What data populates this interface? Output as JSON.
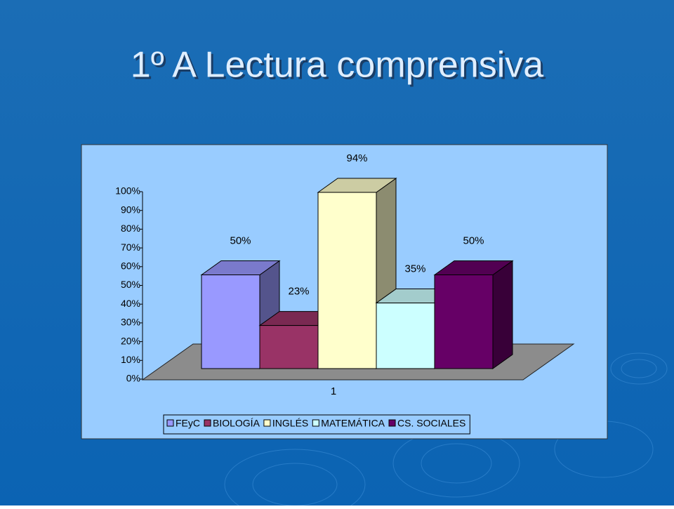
{
  "chart_data": {
    "type": "bar3d",
    "title": "1º A Lectura comprensiva",
    "categories": [
      "1"
    ],
    "series": [
      {
        "name": "FEyC",
        "color": "#9999ff",
        "values": [
          50
        ],
        "value_labels": [
          "50%"
        ]
      },
      {
        "name": "BIOLOGÍA",
        "color": "#993366",
        "values": [
          23
        ],
        "value_labels": [
          "23%"
        ]
      },
      {
        "name": "INGLÉS",
        "color": "#ffffcc",
        "values": [
          94
        ],
        "value_labels": [
          "94%"
        ]
      },
      {
        "name": "MATEMÁTICA",
        "color": "#ccffff",
        "values": [
          35
        ],
        "value_labels": [
          "35%"
        ]
      },
      {
        "name": "CS. SOCIALES",
        "color": "#660066",
        "values": [
          50
        ],
        "value_labels": [
          "50%"
        ]
      }
    ],
    "ylim": [
      0,
      100
    ],
    "yticks": [
      {
        "value": 0,
        "label": "0%"
      },
      {
        "value": 10,
        "label": "10%"
      },
      {
        "value": 20,
        "label": "20%"
      },
      {
        "value": 30,
        "label": "30%"
      },
      {
        "value": 40,
        "label": "40%"
      },
      {
        "value": 50,
        "label": "50%"
      },
      {
        "value": 60,
        "label": "60%"
      },
      {
        "value": 70,
        "label": "70%"
      },
      {
        "value": 80,
        "label": "80%"
      },
      {
        "value": 90,
        "label": "90%"
      },
      {
        "value": 100,
        "label": "100%"
      }
    ],
    "legend": "bottom"
  }
}
